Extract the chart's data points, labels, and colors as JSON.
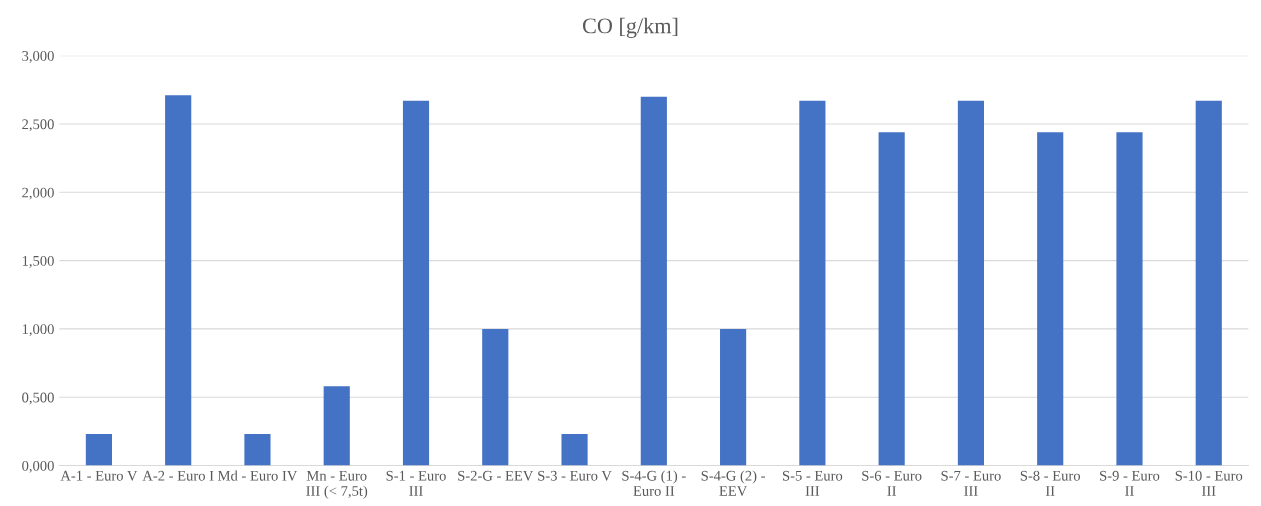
{
  "chart_data": {
    "type": "bar",
    "title": "CO [g/km]",
    "categories": [
      "A-1 - Euro V",
      "A-2 - Euro I",
      "Md - Euro IV",
      "Mn - Euro III (< 7,5t)",
      "S-1 - Euro III",
      "S-2-G - EEV",
      "S-3 - Euro V",
      "S-4-G (1) - Euro II",
      "S-4-G (2) - EEV",
      "S-5 - Euro III",
      "S-6 - Euro II",
      "S-7 - Euro III",
      "S-8 - Euro II",
      "S-9 - Euro II",
      "S-10 - Euro III"
    ],
    "values": [
      0.23,
      2.71,
      0.23,
      0.58,
      2.67,
      1.0,
      0.23,
      2.7,
      1.0,
      2.67,
      2.44,
      2.67,
      2.44,
      2.44,
      2.67
    ],
    "color": "#4472c4",
    "ylim": [
      0,
      3
    ],
    "yticks": [
      {
        "value": 0,
        "label": "0,000"
      },
      {
        "value": 0.5,
        "label": "0,500"
      },
      {
        "value": 1,
        "label": "1,000"
      },
      {
        "value": 1.5,
        "label": "1,500"
      },
      {
        "value": 2,
        "label": "2,000"
      },
      {
        "value": 2.5,
        "label": "2,500"
      },
      {
        "value": 3,
        "label": "3,000"
      }
    ],
    "grid": "y"
  }
}
